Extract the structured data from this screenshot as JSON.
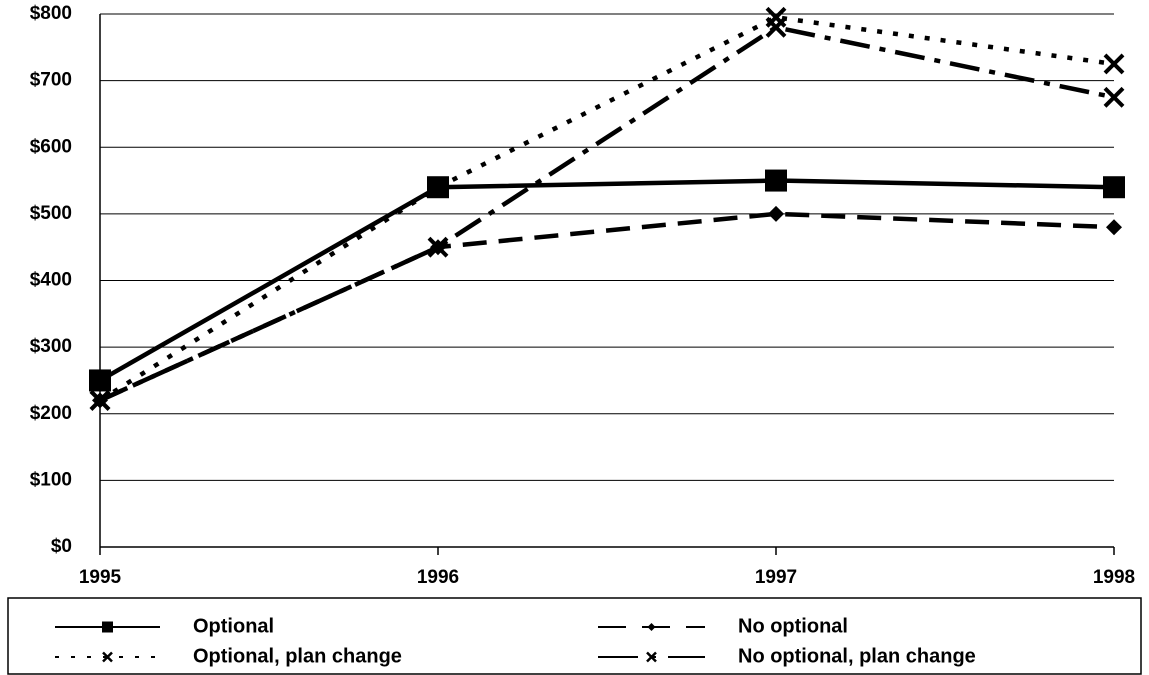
{
  "chart_data": {
    "type": "line",
    "x": [
      1995,
      1996,
      1997,
      1998
    ],
    "xlim": [
      1995,
      1998
    ],
    "xticks": [
      1995,
      1996,
      1997,
      1998
    ],
    "ylim": [
      0,
      800
    ],
    "yticks": [
      {
        "value": 0,
        "label": "$0"
      },
      {
        "value": 100,
        "label": "$100"
      },
      {
        "value": 200,
        "label": "$200"
      },
      {
        "value": 300,
        "label": "$300"
      },
      {
        "value": 400,
        "label": "$400"
      },
      {
        "value": 500,
        "label": "$500"
      },
      {
        "value": 600,
        "label": "$600"
      },
      {
        "value": 700,
        "label": "$700"
      },
      {
        "value": 800,
        "label": "$800"
      }
    ],
    "grid": true,
    "legend": "bottom",
    "series": [
      {
        "name": "Optional",
        "color": "#000000",
        "line_style": "solid",
        "marker": "square",
        "values": [
          250,
          540,
          550,
          540
        ]
      },
      {
        "name": "No optional",
        "color": "#000000",
        "line_style": "dashed",
        "marker": "diamond",
        "values": [
          220,
          450,
          500,
          480
        ]
      },
      {
        "name": "Optional, plan change",
        "color": "#000000",
        "line_style": "dotted",
        "marker": "x",
        "values": [
          220,
          540,
          795,
          725
        ]
      },
      {
        "name": "No optional, plan change",
        "color": "#000000",
        "line_style": "dashdot",
        "marker": "x",
        "values": [
          220,
          450,
          780,
          675
        ]
      }
    ]
  }
}
